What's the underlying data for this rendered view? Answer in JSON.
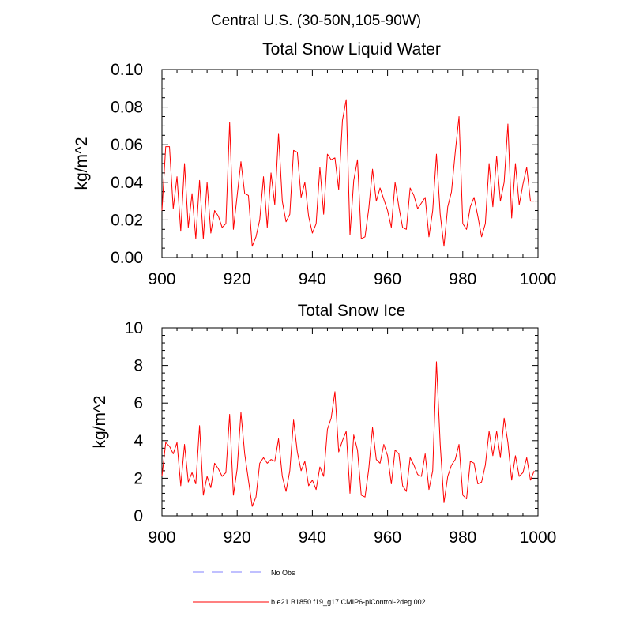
{
  "figure_title": "Central U.S. (30-50N,105-90W)",
  "chart_data": [
    {
      "type": "line",
      "title": "Total Snow Liquid Water",
      "xlabel": "",
      "ylabel": "kg/m^2",
      "xlim": [
        900,
        1000
      ],
      "ylim": [
        0,
        0.1
      ],
      "xticks": [
        "900",
        "920",
        "940",
        "960",
        "980",
        "1000"
      ],
      "yticks": [
        "0.00",
        "0.02",
        "0.04",
        "0.06",
        "0.08",
        "0.10"
      ],
      "series": [
        {
          "name": "b.e21.B1850.f19_g17.CMIP6-piControl-2deg.002",
          "color": "#ff0000",
          "x_start": 900,
          "x_step": 1,
          "values": [
            0.025,
            0.059,
            0.059,
            0.026,
            0.043,
            0.014,
            0.05,
            0.016,
            0.034,
            0.01,
            0.041,
            0.01,
            0.04,
            0.013,
            0.025,
            0.022,
            0.016,
            0.018,
            0.072,
            0.015,
            0.033,
            0.051,
            0.034,
            0.033,
            0.006,
            0.011,
            0.02,
            0.043,
            0.016,
            0.045,
            0.028,
            0.066,
            0.03,
            0.019,
            0.023,
            0.057,
            0.056,
            0.032,
            0.04,
            0.022,
            0.013,
            0.018,
            0.048,
            0.023,
            0.055,
            0.052,
            0.053,
            0.036,
            0.073,
            0.084,
            0.012,
            0.041,
            0.052,
            0.01,
            0.011,
            0.026,
            0.047,
            0.03,
            0.037,
            0.031,
            0.025,
            0.016,
            0.04,
            0.027,
            0.016,
            0.015,
            0.037,
            0.033,
            0.026,
            0.029,
            0.032,
            0.011,
            0.025,
            0.055,
            0.023,
            0.006,
            0.027,
            0.035,
            0.056,
            0.075,
            0.018,
            0.015,
            0.027,
            0.032,
            0.022,
            0.011,
            0.018,
            0.05,
            0.027,
            0.054,
            0.03,
            0.04,
            0.071,
            0.021,
            0.05,
            0.028,
            0.039,
            0.048,
            0.03,
            0.03
          ]
        }
      ]
    },
    {
      "type": "line",
      "title": "Total Snow Ice",
      "xlabel": "",
      "ylabel": "kg/m^2",
      "xlim": [
        900,
        1000
      ],
      "ylim": [
        0,
        10
      ],
      "xticks": [
        "900",
        "920",
        "940",
        "960",
        "980",
        "1000"
      ],
      "yticks": [
        "0",
        "2",
        "4",
        "6",
        "8",
        "10"
      ],
      "series": [
        {
          "name": "b.e21.B1850.f19_g17.CMIP6-piControl-2deg.002",
          "color": "#ff0000",
          "x_start": 900,
          "x_step": 1,
          "values": [
            2.1,
            3.9,
            3.7,
            3.3,
            3.9,
            1.6,
            3.8,
            1.8,
            2.3,
            1.7,
            4.8,
            1.1,
            2.1,
            1.5,
            2.8,
            2.5,
            2.1,
            2.3,
            5.4,
            1.1,
            2.5,
            5.5,
            3.3,
            1.9,
            0.5,
            1.0,
            2.8,
            3.1,
            2.8,
            3.0,
            2.9,
            4.1,
            2.1,
            1.3,
            2.4,
            5.1,
            3.4,
            2.4,
            2.9,
            1.6,
            1.9,
            1.4,
            2.6,
            2.1,
            4.6,
            5.2,
            6.6,
            3.4,
            4.0,
            4.5,
            1.2,
            4.3,
            3.5,
            1.1,
            1.0,
            2.5,
            4.7,
            3.0,
            2.8,
            3.8,
            3.2,
            1.7,
            3.5,
            3.3,
            1.6,
            1.3,
            3.1,
            2.7,
            2.2,
            2.1,
            3.3,
            1.4,
            2.4,
            8.2,
            3.8,
            0.7,
            2.1,
            2.7,
            3.0,
            3.8,
            1.1,
            0.9,
            2.9,
            2.8,
            1.7,
            1.8,
            2.7,
            4.5,
            3.2,
            4.5,
            3.1,
            5.2,
            3.9,
            1.9,
            3.2,
            2.1,
            2.3,
            3.1,
            1.9,
            2.4
          ]
        }
      ]
    }
  ],
  "legend": {
    "position": "bottom",
    "items": [
      {
        "label": "No Obs",
        "color": "#8080ff",
        "style": "dashed"
      },
      {
        "label": "b.e21.B1850.f19_g17.CMIP6-piControl-2deg.002",
        "color": "#ff0000",
        "style": "solid"
      }
    ]
  }
}
